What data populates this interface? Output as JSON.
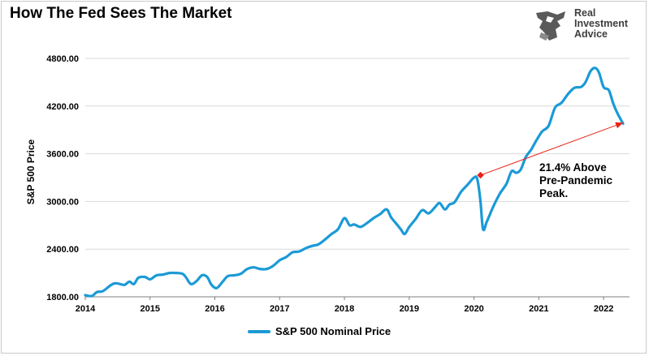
{
  "title": "How The Fed Sees The Market",
  "logo": {
    "lines": [
      "Real",
      "Investment",
      "Advice"
    ]
  },
  "colors": {
    "line": "#1b9ad6",
    "arrow": "#e8231a",
    "grid": "#d9d9d9"
  },
  "annotation": {
    "text": "21.4% Above\nPre-Pandemic\nPeak."
  },
  "chart_data": {
    "type": "line",
    "ylabel": "S&P 500 Price",
    "xlabel": "",
    "ylim": [
      1800,
      4800
    ],
    "xlim": [
      2014,
      2022.4
    ],
    "yticks": [
      "1800.00",
      "2400.00",
      "3000.00",
      "3600.00",
      "4200.00",
      "4800.00"
    ],
    "ytick_values": [
      1800,
      2400,
      3000,
      3600,
      4200,
      4800
    ],
    "xticks": [
      "2014",
      "2015",
      "2016",
      "2017",
      "2018",
      "2019",
      "2020",
      "2021",
      "2022"
    ],
    "xtick_values": [
      2014,
      2015,
      2016,
      2017,
      2018,
      2019,
      2020,
      2021,
      2022
    ],
    "grid": "horizontal",
    "legend": "bottom",
    "series": [
      {
        "name": "S&P 500 Nominal Price",
        "x": [
          2014.0,
          2014.1,
          2014.18,
          2014.27,
          2014.4,
          2014.48,
          2014.6,
          2014.68,
          2014.75,
          2014.82,
          2014.92,
          2015.0,
          2015.1,
          2015.2,
          2015.3,
          2015.4,
          2015.5,
          2015.55,
          2015.63,
          2015.72,
          2015.8,
          2015.88,
          2015.95,
          2016.03,
          2016.12,
          2016.2,
          2016.3,
          2016.4,
          2016.5,
          2016.6,
          2016.7,
          2016.8,
          2016.9,
          2017.0,
          2017.1,
          2017.2,
          2017.3,
          2017.4,
          2017.5,
          2017.6,
          2017.7,
          2017.8,
          2017.9,
          2018.0,
          2018.08,
          2018.15,
          2018.25,
          2018.35,
          2018.45,
          2018.55,
          2018.65,
          2018.72,
          2018.8,
          2018.87,
          2018.93,
          2019.0,
          2019.1,
          2019.2,
          2019.3,
          2019.4,
          2019.47,
          2019.55,
          2019.62,
          2019.7,
          2019.8,
          2019.9,
          2020.0,
          2020.05,
          2020.1,
          2020.14,
          2020.2,
          2020.3,
          2020.4,
          2020.5,
          2020.58,
          2020.65,
          2020.72,
          2020.8,
          2020.88,
          2020.95,
          2021.05,
          2021.15,
          2021.25,
          2021.35,
          2021.45,
          2021.55,
          2021.65,
          2021.72,
          2021.8,
          2021.87,
          2021.93,
          2022.0,
          2022.08,
          2022.15,
          2022.22,
          2022.3
        ],
        "y": [
          1820,
          1810,
          1860,
          1870,
          1950,
          1970,
          1950,
          1990,
          1960,
          2040,
          2050,
          2020,
          2070,
          2080,
          2100,
          2100,
          2090,
          2050,
          1960,
          2000,
          2070,
          2050,
          1950,
          1910,
          1990,
          2060,
          2070,
          2090,
          2150,
          2170,
          2150,
          2150,
          2190,
          2260,
          2300,
          2360,
          2370,
          2410,
          2440,
          2460,
          2520,
          2590,
          2650,
          2790,
          2700,
          2710,
          2680,
          2730,
          2790,
          2840,
          2900,
          2800,
          2720,
          2650,
          2590,
          2680,
          2780,
          2890,
          2850,
          2930,
          2980,
          2900,
          2960,
          2990,
          3120,
          3210,
          3300,
          3280,
          3000,
          2650,
          2750,
          2940,
          3100,
          3220,
          3380,
          3360,
          3400,
          3560,
          3650,
          3750,
          3880,
          3950,
          4180,
          4240,
          4350,
          4430,
          4440,
          4500,
          4640,
          4680,
          4620,
          4440,
          4400,
          4230,
          4100,
          3980
        ]
      }
    ],
    "arrow": {
      "from": [
        2020.1,
        3330
      ],
      "to": [
        2022.3,
        3990
      ]
    }
  }
}
